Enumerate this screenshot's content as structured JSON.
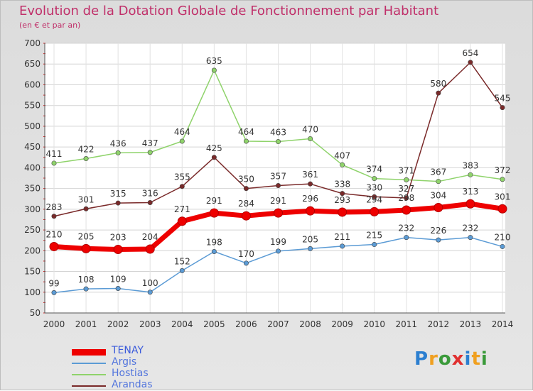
{
  "title": "Evolution de la Dotation Globale de Fonctionnement par Habitant",
  "subtitle": "(en € et par an)",
  "logo": "Proxiti",
  "chart_data": {
    "type": "line",
    "title": "Evolution de la Dotation Globale de Fonctionnement par Habitant",
    "subtitle": "(en € et par an)",
    "x": [
      "2000",
      "2001",
      "2002",
      "2003",
      "2004",
      "2005",
      "2006",
      "2007",
      "2008",
      "2009",
      "2010",
      "2011",
      "2012",
      "2013",
      "2014"
    ],
    "ylim": [
      50,
      700
    ],
    "yticks": [
      "50",
      "100",
      "150",
      "200",
      "250",
      "300",
      "350",
      "400",
      "450",
      "500",
      "550",
      "600",
      "650",
      "700"
    ],
    "grid": true,
    "legend_position": "bottom-left",
    "series": [
      {
        "name": "TENAY",
        "color": "#ee0000",
        "values": [
          210,
          205,
          203,
          204,
          271,
          291,
          284,
          291,
          296,
          293,
          294,
          298,
          304,
          313,
          301
        ]
      },
      {
        "name": "Argis",
        "color": "#5b9bd5",
        "values": [
          99,
          108,
          109,
          100,
          152,
          198,
          170,
          199,
          205,
          211,
          215,
          232,
          226,
          232,
          210
        ]
      },
      {
        "name": "Hostias",
        "color": "#8fd36b",
        "values": [
          411,
          422,
          436,
          437,
          464,
          635,
          464,
          463,
          470,
          407,
          374,
          371,
          367,
          383,
          372
        ]
      },
      {
        "name": "Arandas",
        "color": "#7a2a2a",
        "values": [
          283,
          301,
          315,
          316,
          355,
          425,
          350,
          357,
          361,
          338,
          330,
          327,
          580,
          654,
          545
        ]
      }
    ]
  }
}
